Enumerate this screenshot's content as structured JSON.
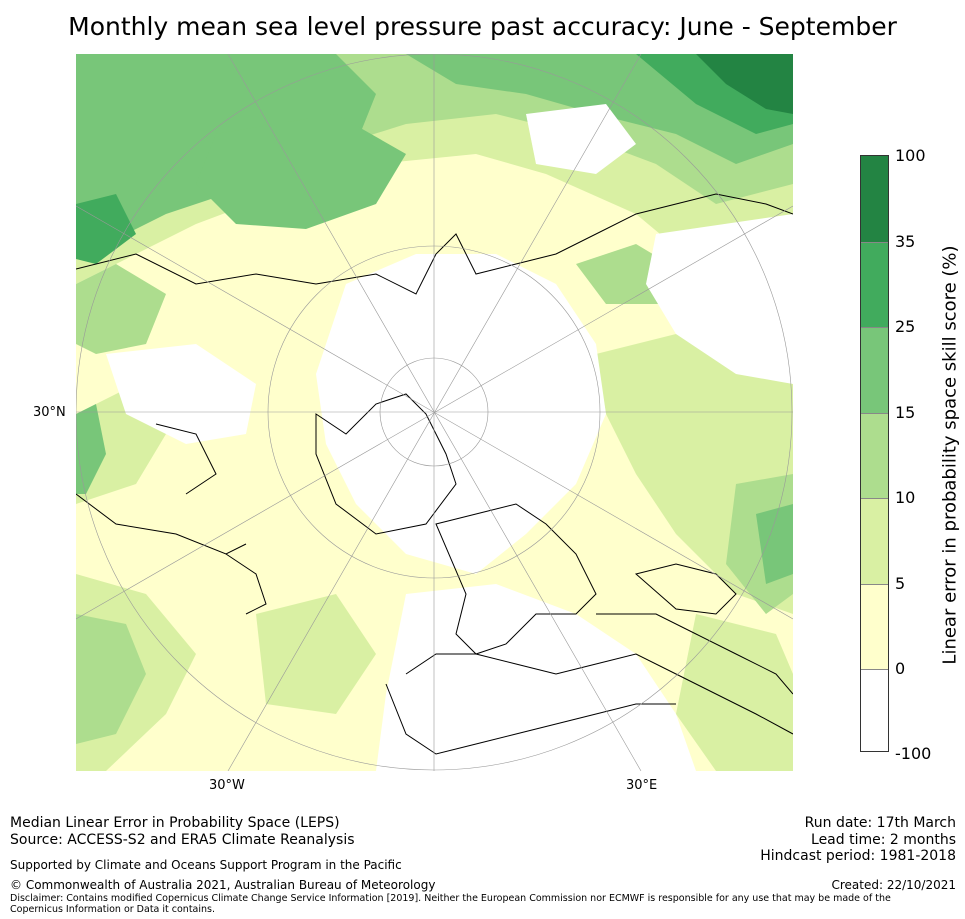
{
  "title": "Monthly mean sea level pressure past accuracy: June - September",
  "map": {
    "projection": "north-polar-stereographic",
    "lat_labels": [
      "30°N"
    ],
    "lon_labels": [
      "30°W",
      "30°E"
    ],
    "land_outline_color": "#000000",
    "graticule_color": "#999999"
  },
  "colorbar": {
    "label": "Linear error in probability space skill score (%)",
    "ticks": [
      "100",
      "35",
      "25",
      "15",
      "10",
      "5",
      "0",
      "-100"
    ],
    "bins": [
      {
        "from": 35,
        "to": 100,
        "color": "#238443"
      },
      {
        "from": 25,
        "to": 35,
        "color": "#41ab5d"
      },
      {
        "from": 15,
        "to": 25,
        "color": "#78c679"
      },
      {
        "from": 10,
        "to": 15,
        "color": "#addd8e"
      },
      {
        "from": 5,
        "to": 10,
        "color": "#d9f0a3"
      },
      {
        "from": 0,
        "to": 5,
        "color": "#ffffcc"
      },
      {
        "from": -100,
        "to": 0,
        "color": "#ffffff"
      }
    ]
  },
  "footer": {
    "line1": "Median Linear Error in Probability Space (LEPS)",
    "line2": "Source: ACCESS-S2 and ERA5 Climate Reanalysis",
    "support": "Supported by Climate and Oceans Support Program in the Pacific",
    "copyright": "© Commonwealth of Australia 2021, Australian Bureau of Meteorology",
    "disclaimer": "Disclaimer: Contains modified Copernicus Climate Change Service Information [2019]. Neither the European Commission nor ECMWF is responsible for any use that may be made of the Copernicus Information or Data it contains.",
    "run_date": "Run date: 17th March",
    "lead_time": "Lead time: 2 months",
    "hindcast": "Hindcast period: 1981-2018",
    "created": "Created: 22/10/2021"
  }
}
